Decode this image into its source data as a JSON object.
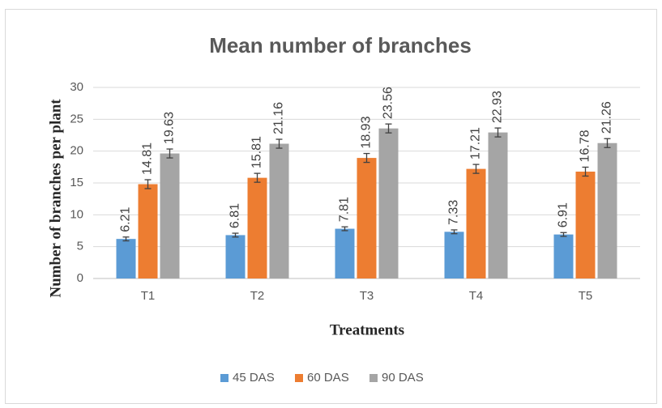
{
  "chart_data": {
    "type": "bar",
    "title": "Mean number of branches",
    "x_label": "Treatments",
    "y_label": "Number of branches per plant",
    "categories": [
      "T1",
      "T2",
      "T3",
      "T4",
      "T5"
    ],
    "series": [
      {
        "name": "45 DAS",
        "color": "#5b9bd5",
        "values": [
          6.21,
          6.81,
          7.81,
          7.33,
          6.91
        ],
        "errors": [
          0.3,
          0.3,
          0.3,
          0.3,
          0.3
        ]
      },
      {
        "name": "60 DAS",
        "color": "#ed7d31",
        "values": [
          14.81,
          15.81,
          18.93,
          17.21,
          16.78
        ],
        "errors": [
          0.7,
          0.7,
          0.7,
          0.7,
          0.7
        ]
      },
      {
        "name": "90 DAS",
        "color": "#a5a5a5",
        "values": [
          19.63,
          21.16,
          23.56,
          22.93,
          21.26
        ],
        "errors": [
          0.7,
          0.7,
          0.7,
          0.7,
          0.7
        ]
      }
    ],
    "ylim": [
      0,
      30
    ],
    "yticks": [
      0,
      5,
      10,
      15,
      20,
      25,
      30
    ],
    "grid": true,
    "legend": "bottom"
  }
}
